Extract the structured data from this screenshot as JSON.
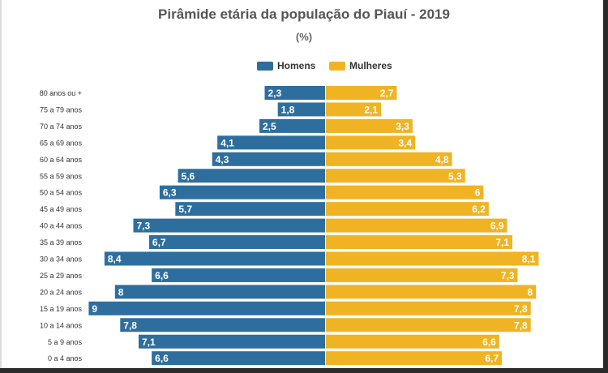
{
  "chart_data": {
    "type": "bar",
    "title": "Pirâmide etária da população do Piauí - 2019",
    "subtitle": "(%)",
    "orientation": "horizontal-population-pyramid",
    "legend_placement": "top-center",
    "grid": false,
    "categories": [
      "80 anos ou +",
      "75 a 79 anos",
      "70 a 74 anos",
      "65 a 69 anos",
      "60 a 64 anos",
      "55 a 59 anos",
      "50 a 54 anos",
      "45 a 49 anos",
      "40 a 44 anos",
      "35 a 39 anos",
      "30 a 34 anos",
      "25 a 29 anos",
      "20 a 24 anos",
      "15 a 19 anos",
      "10 a 14 anos",
      "5 a 9 anos",
      "0 a 4 anos"
    ],
    "series": [
      {
        "name": "Homens",
        "color": "#2e6e9e",
        "values": [
          2.3,
          1.8,
          2.5,
          4.1,
          4.3,
          5.6,
          6.3,
          5.7,
          7.3,
          6.7,
          8.4,
          6.6,
          8,
          9,
          7.8,
          7.1,
          6.6
        ],
        "labels": [
          "2,3",
          "1,8",
          "2,5",
          "4,1",
          "4,3",
          "5,6",
          "6,3",
          "5,7",
          "7,3",
          "6,7",
          "8,4",
          "6,6",
          "8",
          "9",
          "7,8",
          "7,1",
          "6,6"
        ]
      },
      {
        "name": "Mulheres",
        "color": "#f0b323",
        "values": [
          2.7,
          2.1,
          3.3,
          3.4,
          4.8,
          5.3,
          6,
          6.2,
          6.9,
          7.1,
          8.1,
          7.3,
          8,
          7.8,
          7.8,
          6.6,
          6.7
        ],
        "labels": [
          "2,7",
          "2,1",
          "3,3",
          "3,4",
          "4,8",
          "5,3",
          "6",
          "6,2",
          "6,9",
          "7,1",
          "8,1",
          "7,3",
          "8",
          "7,8",
          "7,8",
          "6,6",
          "6,7"
        ]
      }
    ]
  }
}
